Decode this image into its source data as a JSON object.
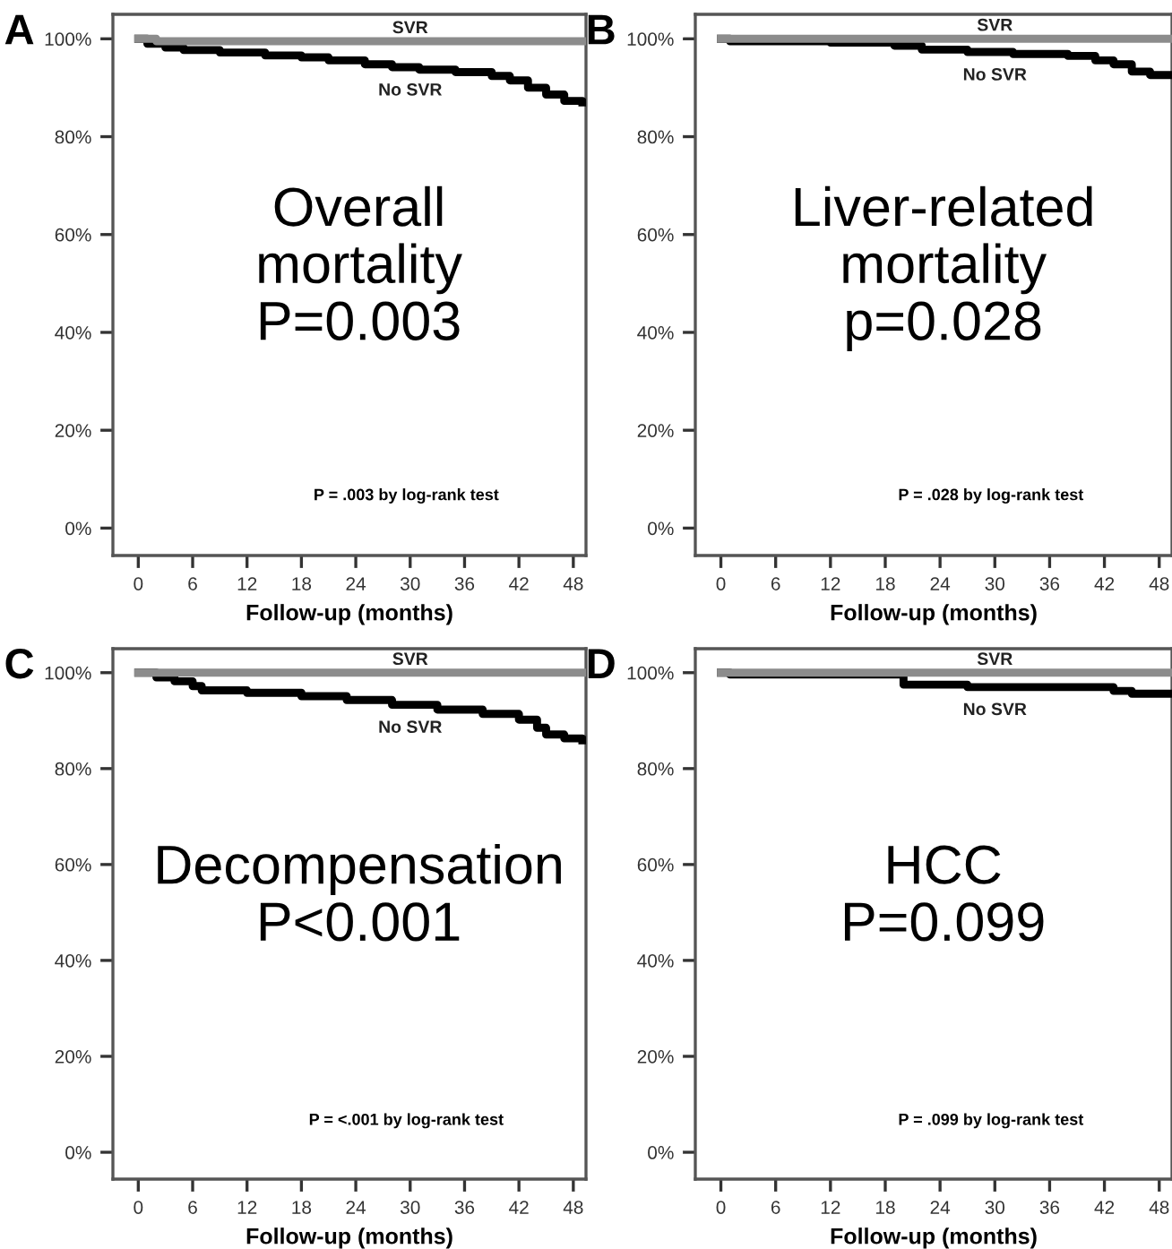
{
  "chart_data": [
    {
      "type": "step",
      "title": "A",
      "xlabel": "Follow-up (months)",
      "xlim": [
        -2.8,
        49.4
      ],
      "ylim": [
        -5.6,
        105
      ],
      "xticks": [
        0,
        6,
        12,
        18,
        24,
        30,
        36,
        42,
        48
      ],
      "yticks": [
        {
          "value": 0,
          "label": "0%"
        },
        {
          "value": 20,
          "label": "20%"
        },
        {
          "value": 40,
          "label": "40%"
        },
        {
          "value": 60,
          "label": "60%"
        },
        {
          "value": 80,
          "label": "80%"
        },
        {
          "value": 100,
          "label": "100%"
        }
      ],
      "grid": false,
      "line_style": "solid",
      "marker": "none",
      "annotations": [
        "Overall\nmortality\nP=0.003",
        "P = .003 by log-rank test"
      ],
      "series": [
        {
          "name": "SVR",
          "color": "#8c8c8c",
          "x": [
            0,
            2,
            49
          ],
          "values": [
            100,
            99.5,
            99.5
          ]
        },
        {
          "name": "No SVR",
          "color": "#000000",
          "x": [
            0,
            1,
            3,
            5,
            9,
            14,
            18,
            21,
            25,
            28,
            31,
            35,
            39,
            41,
            43,
            45,
            47,
            49
          ],
          "values": [
            100,
            99,
            98.2,
            97.7,
            97.2,
            96.6,
            96.2,
            95.6,
            94.8,
            94.2,
            93.7,
            93.2,
            92.4,
            91.5,
            90,
            88.6,
            87.3,
            87
          ]
        }
      ]
    },
    {
      "type": "step",
      "title": "B",
      "xlabel": "Follow-up (months)",
      "xlim": [
        -2.8,
        49.4
      ],
      "ylim": [
        -5.6,
        105
      ],
      "xticks": [
        0,
        6,
        12,
        18,
        24,
        30,
        36,
        42,
        48
      ],
      "yticks": [
        {
          "value": 0,
          "label": "0%"
        },
        {
          "value": 20,
          "label": "20%"
        },
        {
          "value": 40,
          "label": "40%"
        },
        {
          "value": 60,
          "label": "60%"
        },
        {
          "value": 80,
          "label": "80%"
        },
        {
          "value": 100,
          "label": "100%"
        }
      ],
      "grid": false,
      "line_style": "solid",
      "marker": "none",
      "annotations": [
        "Liver-related\nmortality\np=0.028",
        "P = .028 by log-rank test"
      ],
      "series": [
        {
          "name": "SVR",
          "color": "#8c8c8c",
          "x": [
            0,
            49
          ],
          "values": [
            100,
            100
          ]
        },
        {
          "name": "No SVR",
          "color": "#000000",
          "x": [
            0,
            1,
            12,
            19,
            22,
            27,
            32,
            38,
            41,
            43,
            45,
            47,
            49
          ],
          "values": [
            100,
            99.5,
            99.2,
            98.6,
            97.8,
            97.3,
            96.9,
            96.5,
            95.6,
            94.8,
            93.3,
            92.6,
            92.6
          ]
        }
      ]
    },
    {
      "type": "step",
      "title": "C",
      "xlabel": "Follow-up (months)",
      "xlim": [
        -2.8,
        49.4
      ],
      "ylim": [
        -5.6,
        105
      ],
      "xticks": [
        0,
        6,
        12,
        18,
        24,
        30,
        36,
        42,
        48
      ],
      "yticks": [
        {
          "value": 0,
          "label": "0%"
        },
        {
          "value": 20,
          "label": "20%"
        },
        {
          "value": 40,
          "label": "40%"
        },
        {
          "value": 60,
          "label": "60%"
        },
        {
          "value": 80,
          "label": "80%"
        },
        {
          "value": 100,
          "label": "100%"
        }
      ],
      "grid": false,
      "line_style": "solid",
      "marker": "none",
      "annotations": [
        "Decompensation\nP<0.001",
        "P = <.001 by log-rank test"
      ],
      "series": [
        {
          "name": "SVR",
          "color": "#8c8c8c",
          "x": [
            0,
            49
          ],
          "values": [
            100,
            100
          ]
        },
        {
          "name": "No SVR",
          "color": "#000000",
          "x": [
            0,
            2,
            4,
            6,
            7,
            12,
            18,
            23,
            28,
            33,
            38,
            42,
            44,
            45,
            47,
            49
          ],
          "values": [
            100,
            99,
            98.2,
            97.2,
            96.3,
            95.8,
            95.1,
            94.3,
            93.3,
            92.3,
            91.4,
            90.2,
            88.5,
            87.1,
            86.3,
            85.9
          ]
        }
      ]
    },
    {
      "type": "step",
      "title": "D",
      "xlabel": "Follow-up (months)",
      "xlim": [
        -2.8,
        49.4
      ],
      "ylim": [
        -5.6,
        105
      ],
      "xticks": [
        0,
        6,
        12,
        18,
        24,
        30,
        36,
        42,
        48
      ],
      "yticks": [
        {
          "value": 0,
          "label": "0%"
        },
        {
          "value": 20,
          "label": "20%"
        },
        {
          "value": 40,
          "label": "40%"
        },
        {
          "value": 60,
          "label": "60%"
        },
        {
          "value": 80,
          "label": "80%"
        },
        {
          "value": 100,
          "label": "100%"
        }
      ],
      "grid": false,
      "line_style": "solid",
      "marker": "none",
      "annotations": [
        "HCC\nP=0.099",
        "P = .099 by log-rank test"
      ],
      "series": [
        {
          "name": "SVR",
          "color": "#8c8c8c",
          "x": [
            0,
            49
          ],
          "values": [
            100,
            100
          ]
        },
        {
          "name": "No SVR",
          "color": "#000000",
          "x": [
            0,
            1,
            20,
            27,
            43,
            45,
            49
          ],
          "values": [
            100,
            99.6,
            97.5,
            97,
            96.2,
            95.6,
            95.6
          ]
        }
      ]
    }
  ]
}
